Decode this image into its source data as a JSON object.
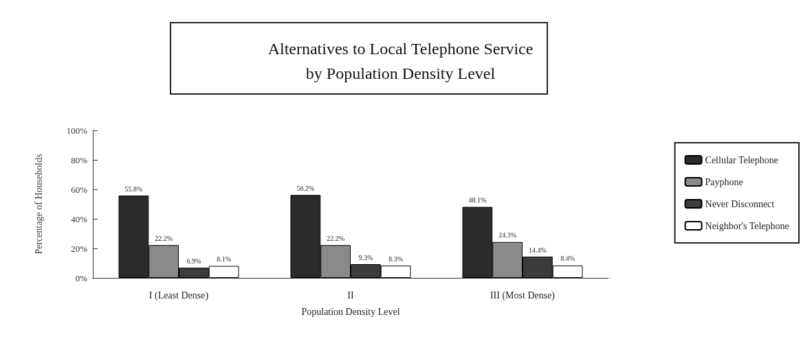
{
  "chart_data": {
    "type": "bar",
    "title": "Alternatives to Local Telephone Service\nby Population Density Level",
    "xlabel": "Population Density Level",
    "ylabel": "Percentage of Households",
    "categories": [
      "I (Least Dense)",
      "II",
      "III (Most Dense)"
    ],
    "series": [
      {
        "name": "Cellular Telephone",
        "color": "#2b2b2b",
        "values": [
          55.8,
          56.2,
          48.1
        ],
        "value_labels": [
          "55.8%",
          "56.2%",
          "48.1%"
        ]
      },
      {
        "name": "Payphone",
        "color": "#8a8a8a",
        "values": [
          22.2,
          22.2,
          24.3
        ],
        "value_labels": [
          "22.2%",
          "22.2%",
          "24.3%"
        ]
      },
      {
        "name": "Never Disconnect",
        "color": "#3c3c3c",
        "values": [
          6.9,
          9.3,
          14.4
        ],
        "value_labels": [
          "6.9%",
          "9.3%",
          "14.4%"
        ]
      },
      {
        "name": "Neighbor's Telephone",
        "color": "#ffffff",
        "values": [
          8.1,
          8.3,
          8.4
        ],
        "value_labels": [
          "8.1%",
          "8.3%",
          "8.4%"
        ]
      }
    ],
    "ylim": [
      0,
      100
    ],
    "yticks": [
      {
        "value": 0,
        "label": "0%"
      },
      {
        "value": 20,
        "label": "20%"
      },
      {
        "value": 40,
        "label": "40%"
      },
      {
        "value": 60,
        "label": "60%"
      },
      {
        "value": 80,
        "label": "80%"
      },
      {
        "value": 100,
        "label": "100%"
      }
    ],
    "grid": false,
    "legend": "right"
  }
}
